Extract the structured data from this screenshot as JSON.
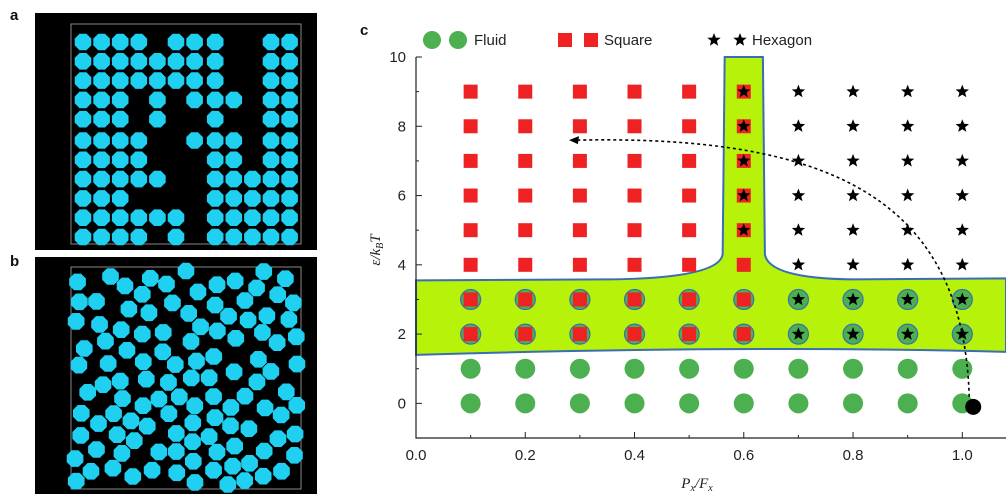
{
  "panels": {
    "a": {
      "label": "a"
    },
    "b": {
      "label": "b"
    },
    "c": {
      "label": "c"
    }
  },
  "colors": {
    "fluid": "#4caf50",
    "square": "#ee2222",
    "hexagon": "#000000",
    "coexist_region": "#b6f20a",
    "coexist_border": "#3a6db5",
    "particle": "#1fd0f0"
  },
  "chart_data": {
    "type": "scatter",
    "title": "",
    "xlabel": "Px/Fx",
    "ylabel": "ε/kBT",
    "xlim": [
      0.0,
      1.08
    ],
    "ylim": [
      -1,
      10
    ],
    "xticks": [
      "0.0",
      "0.2",
      "0.4",
      "0.6",
      "0.8",
      "1.0"
    ],
    "yticks": [
      "0",
      "2",
      "4",
      "6",
      "8",
      "10"
    ],
    "legend": {
      "placement": "top",
      "entries": [
        {
          "name": "Fluid",
          "marker": "circle"
        },
        {
          "name": "Square",
          "marker": "square"
        },
        {
          "name": "Hexagon",
          "marker": "star"
        }
      ]
    },
    "x": [
      0.1,
      0.2,
      0.3,
      0.4,
      0.5,
      0.6,
      0.7,
      0.8,
      0.9,
      1.0
    ],
    "series": [
      {
        "name": "Fluid",
        "points": [
          [
            0.1,
            0
          ],
          [
            0.2,
            0
          ],
          [
            0.3,
            0
          ],
          [
            0.4,
            0
          ],
          [
            0.5,
            0
          ],
          [
            0.6,
            0
          ],
          [
            0.7,
            0
          ],
          [
            0.8,
            0
          ],
          [
            0.9,
            0
          ],
          [
            1.0,
            0
          ],
          [
            0.1,
            1
          ],
          [
            0.2,
            1
          ],
          [
            0.3,
            1
          ],
          [
            0.4,
            1
          ],
          [
            0.5,
            1
          ],
          [
            0.6,
            1
          ],
          [
            0.7,
            1
          ],
          [
            0.8,
            1
          ],
          [
            0.9,
            1
          ],
          [
            1.0,
            1
          ],
          [
            0.1,
            2
          ],
          [
            0.2,
            2
          ],
          [
            0.3,
            2
          ],
          [
            0.4,
            2
          ],
          [
            0.5,
            2
          ],
          [
            0.6,
            2
          ],
          [
            0.7,
            2
          ],
          [
            0.8,
            2
          ],
          [
            0.9,
            2
          ],
          [
            1.0,
            2
          ],
          [
            0.1,
            3
          ],
          [
            0.2,
            3
          ],
          [
            0.3,
            3
          ],
          [
            0.4,
            3
          ],
          [
            0.5,
            3
          ],
          [
            0.6,
            3
          ],
          [
            0.7,
            3
          ],
          [
            0.8,
            3
          ],
          [
            0.9,
            3
          ],
          [
            1.0,
            3
          ]
        ]
      },
      {
        "name": "Square",
        "points": [
          [
            0.1,
            2
          ],
          [
            0.2,
            2
          ],
          [
            0.3,
            2
          ],
          [
            0.4,
            2
          ],
          [
            0.5,
            2
          ],
          [
            0.6,
            2
          ],
          [
            0.1,
            3
          ],
          [
            0.2,
            3
          ],
          [
            0.3,
            3
          ],
          [
            0.4,
            3
          ],
          [
            0.5,
            3
          ],
          [
            0.6,
            3
          ],
          [
            0.1,
            4
          ],
          [
            0.2,
            4
          ],
          [
            0.3,
            4
          ],
          [
            0.4,
            4
          ],
          [
            0.5,
            4
          ],
          [
            0.6,
            4
          ],
          [
            0.1,
            5
          ],
          [
            0.2,
            5
          ],
          [
            0.3,
            5
          ],
          [
            0.4,
            5
          ],
          [
            0.5,
            5
          ],
          [
            0.6,
            5
          ],
          [
            0.1,
            6
          ],
          [
            0.2,
            6
          ],
          [
            0.3,
            6
          ],
          [
            0.4,
            6
          ],
          [
            0.5,
            6
          ],
          [
            0.6,
            6
          ],
          [
            0.1,
            7
          ],
          [
            0.2,
            7
          ],
          [
            0.3,
            7
          ],
          [
            0.4,
            7
          ],
          [
            0.5,
            7
          ],
          [
            0.6,
            7
          ],
          [
            0.1,
            8
          ],
          [
            0.2,
            8
          ],
          [
            0.3,
            8
          ],
          [
            0.4,
            8
          ],
          [
            0.5,
            8
          ],
          [
            0.6,
            8
          ],
          [
            0.1,
            9
          ],
          [
            0.2,
            9
          ],
          [
            0.3,
            9
          ],
          [
            0.4,
            9
          ],
          [
            0.5,
            9
          ],
          [
            0.6,
            9
          ]
        ]
      },
      {
        "name": "Hexagon",
        "points": [
          [
            0.6,
            5
          ],
          [
            0.6,
            6
          ],
          [
            0.6,
            7
          ],
          [
            0.6,
            8
          ],
          [
            0.6,
            9
          ],
          [
            0.7,
            2
          ],
          [
            0.8,
            2
          ],
          [
            0.9,
            2
          ],
          [
            1.0,
            2
          ],
          [
            0.7,
            3
          ],
          [
            0.8,
            3
          ],
          [
            0.9,
            3
          ],
          [
            1.0,
            3
          ],
          [
            0.7,
            4
          ],
          [
            0.8,
            4
          ],
          [
            0.9,
            4
          ],
          [
            1.0,
            4
          ],
          [
            0.7,
            5
          ],
          [
            0.8,
            5
          ],
          [
            0.9,
            5
          ],
          [
            1.0,
            5
          ],
          [
            0.7,
            6
          ],
          [
            0.8,
            6
          ],
          [
            0.9,
            6
          ],
          [
            1.0,
            6
          ],
          [
            0.7,
            7
          ],
          [
            0.8,
            7
          ],
          [
            0.9,
            7
          ],
          [
            1.0,
            7
          ],
          [
            0.7,
            8
          ],
          [
            0.8,
            8
          ],
          [
            0.9,
            8
          ],
          [
            1.0,
            8
          ],
          [
            0.7,
            9
          ],
          [
            0.8,
            9
          ],
          [
            0.9,
            9
          ],
          [
            1.0,
            9
          ]
        ]
      }
    ],
    "annotations": [
      {
        "type": "dashed-arrow",
        "from": [
          1.02,
          -0.1
        ],
        "to": [
          0.28,
          7.6
        ]
      },
      {
        "type": "point",
        "at": [
          1.02,
          -0.1
        ],
        "color": "#000000"
      }
    ]
  }
}
